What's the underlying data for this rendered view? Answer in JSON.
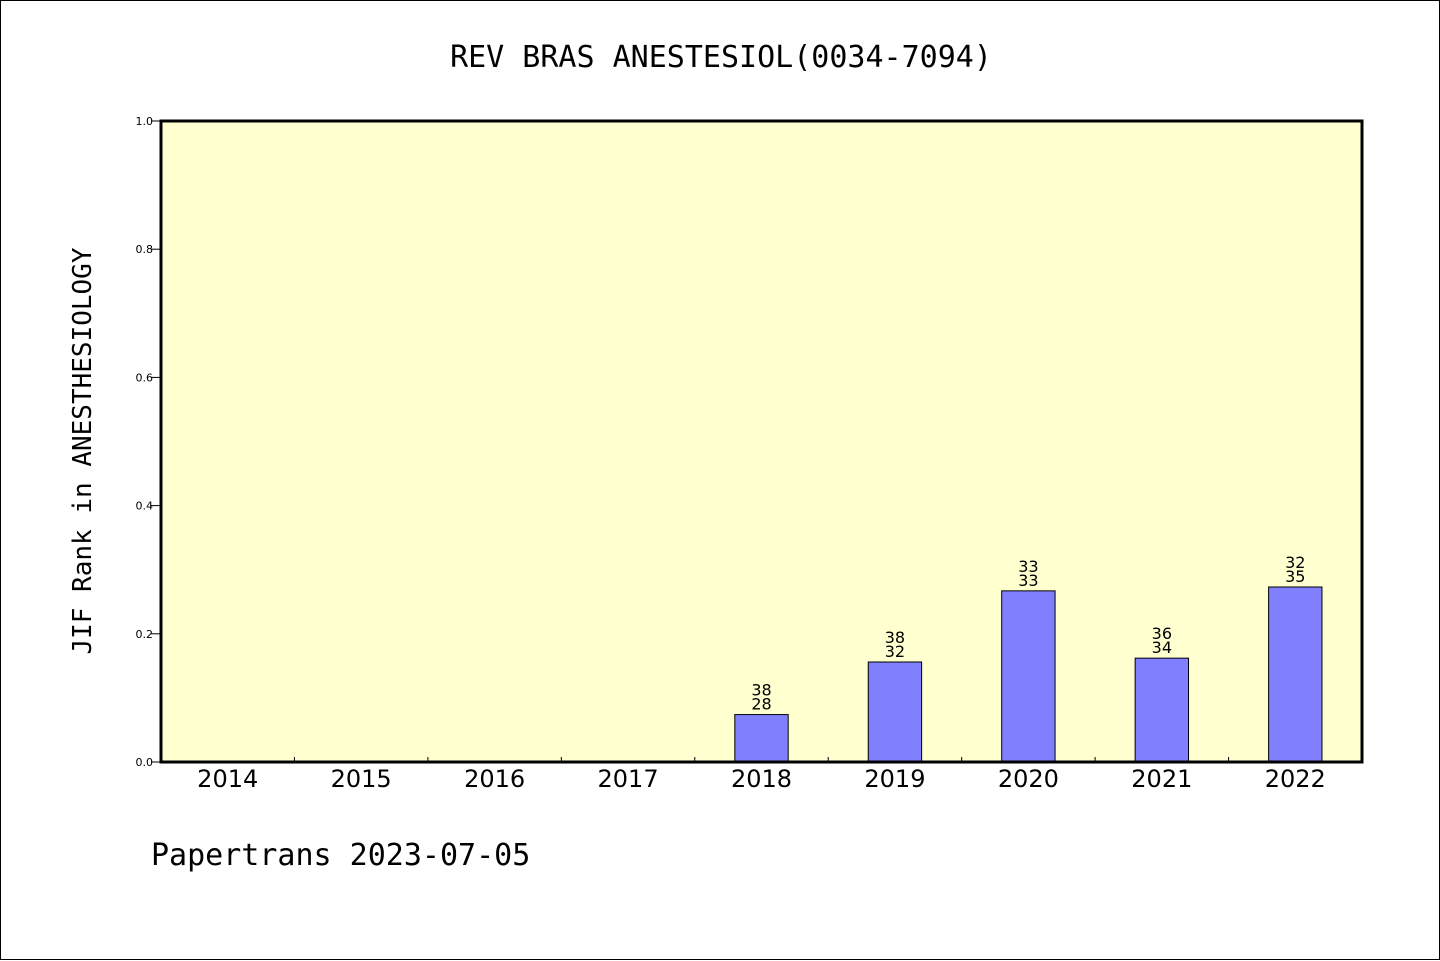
{
  "chart_data": {
    "type": "bar",
    "title": "REV BRAS ANESTESIOL(0034-7094)",
    "ylabel": "JIF Rank in ANESTHESIOLOGY",
    "xlabel": "",
    "categories": [
      "2014",
      "2015",
      "2016",
      "2017",
      "2018",
      "2019",
      "2020",
      "2021",
      "2022"
    ],
    "values": [
      null,
      null,
      null,
      null,
      0.074,
      0.156,
      0.267,
      0.162,
      0.273
    ],
    "bar_labels": [
      null,
      null,
      null,
      null,
      {
        "top": "38",
        "bottom": "28"
      },
      {
        "top": "38",
        "bottom": "32"
      },
      {
        "top": "33",
        "bottom": "33"
      },
      {
        "top": "36",
        "bottom": "34"
      },
      {
        "top": "32",
        "bottom": "35"
      }
    ],
    "ylim": [
      0,
      1.0
    ],
    "yticks": [
      "0.0",
      "0.2",
      "0.4",
      "0.6",
      "0.8",
      "1.0"
    ],
    "ytick_values": [
      0,
      0.2,
      0.4,
      0.6,
      0.8,
      1.0
    ],
    "grid": false,
    "colors": {
      "plot_background": "#ffffd0",
      "bar_fill": "#8080ff",
      "bar_stroke": "#000000",
      "axis": "#000000"
    }
  },
  "footer": {
    "text": "Papertrans 2023-07-05"
  }
}
